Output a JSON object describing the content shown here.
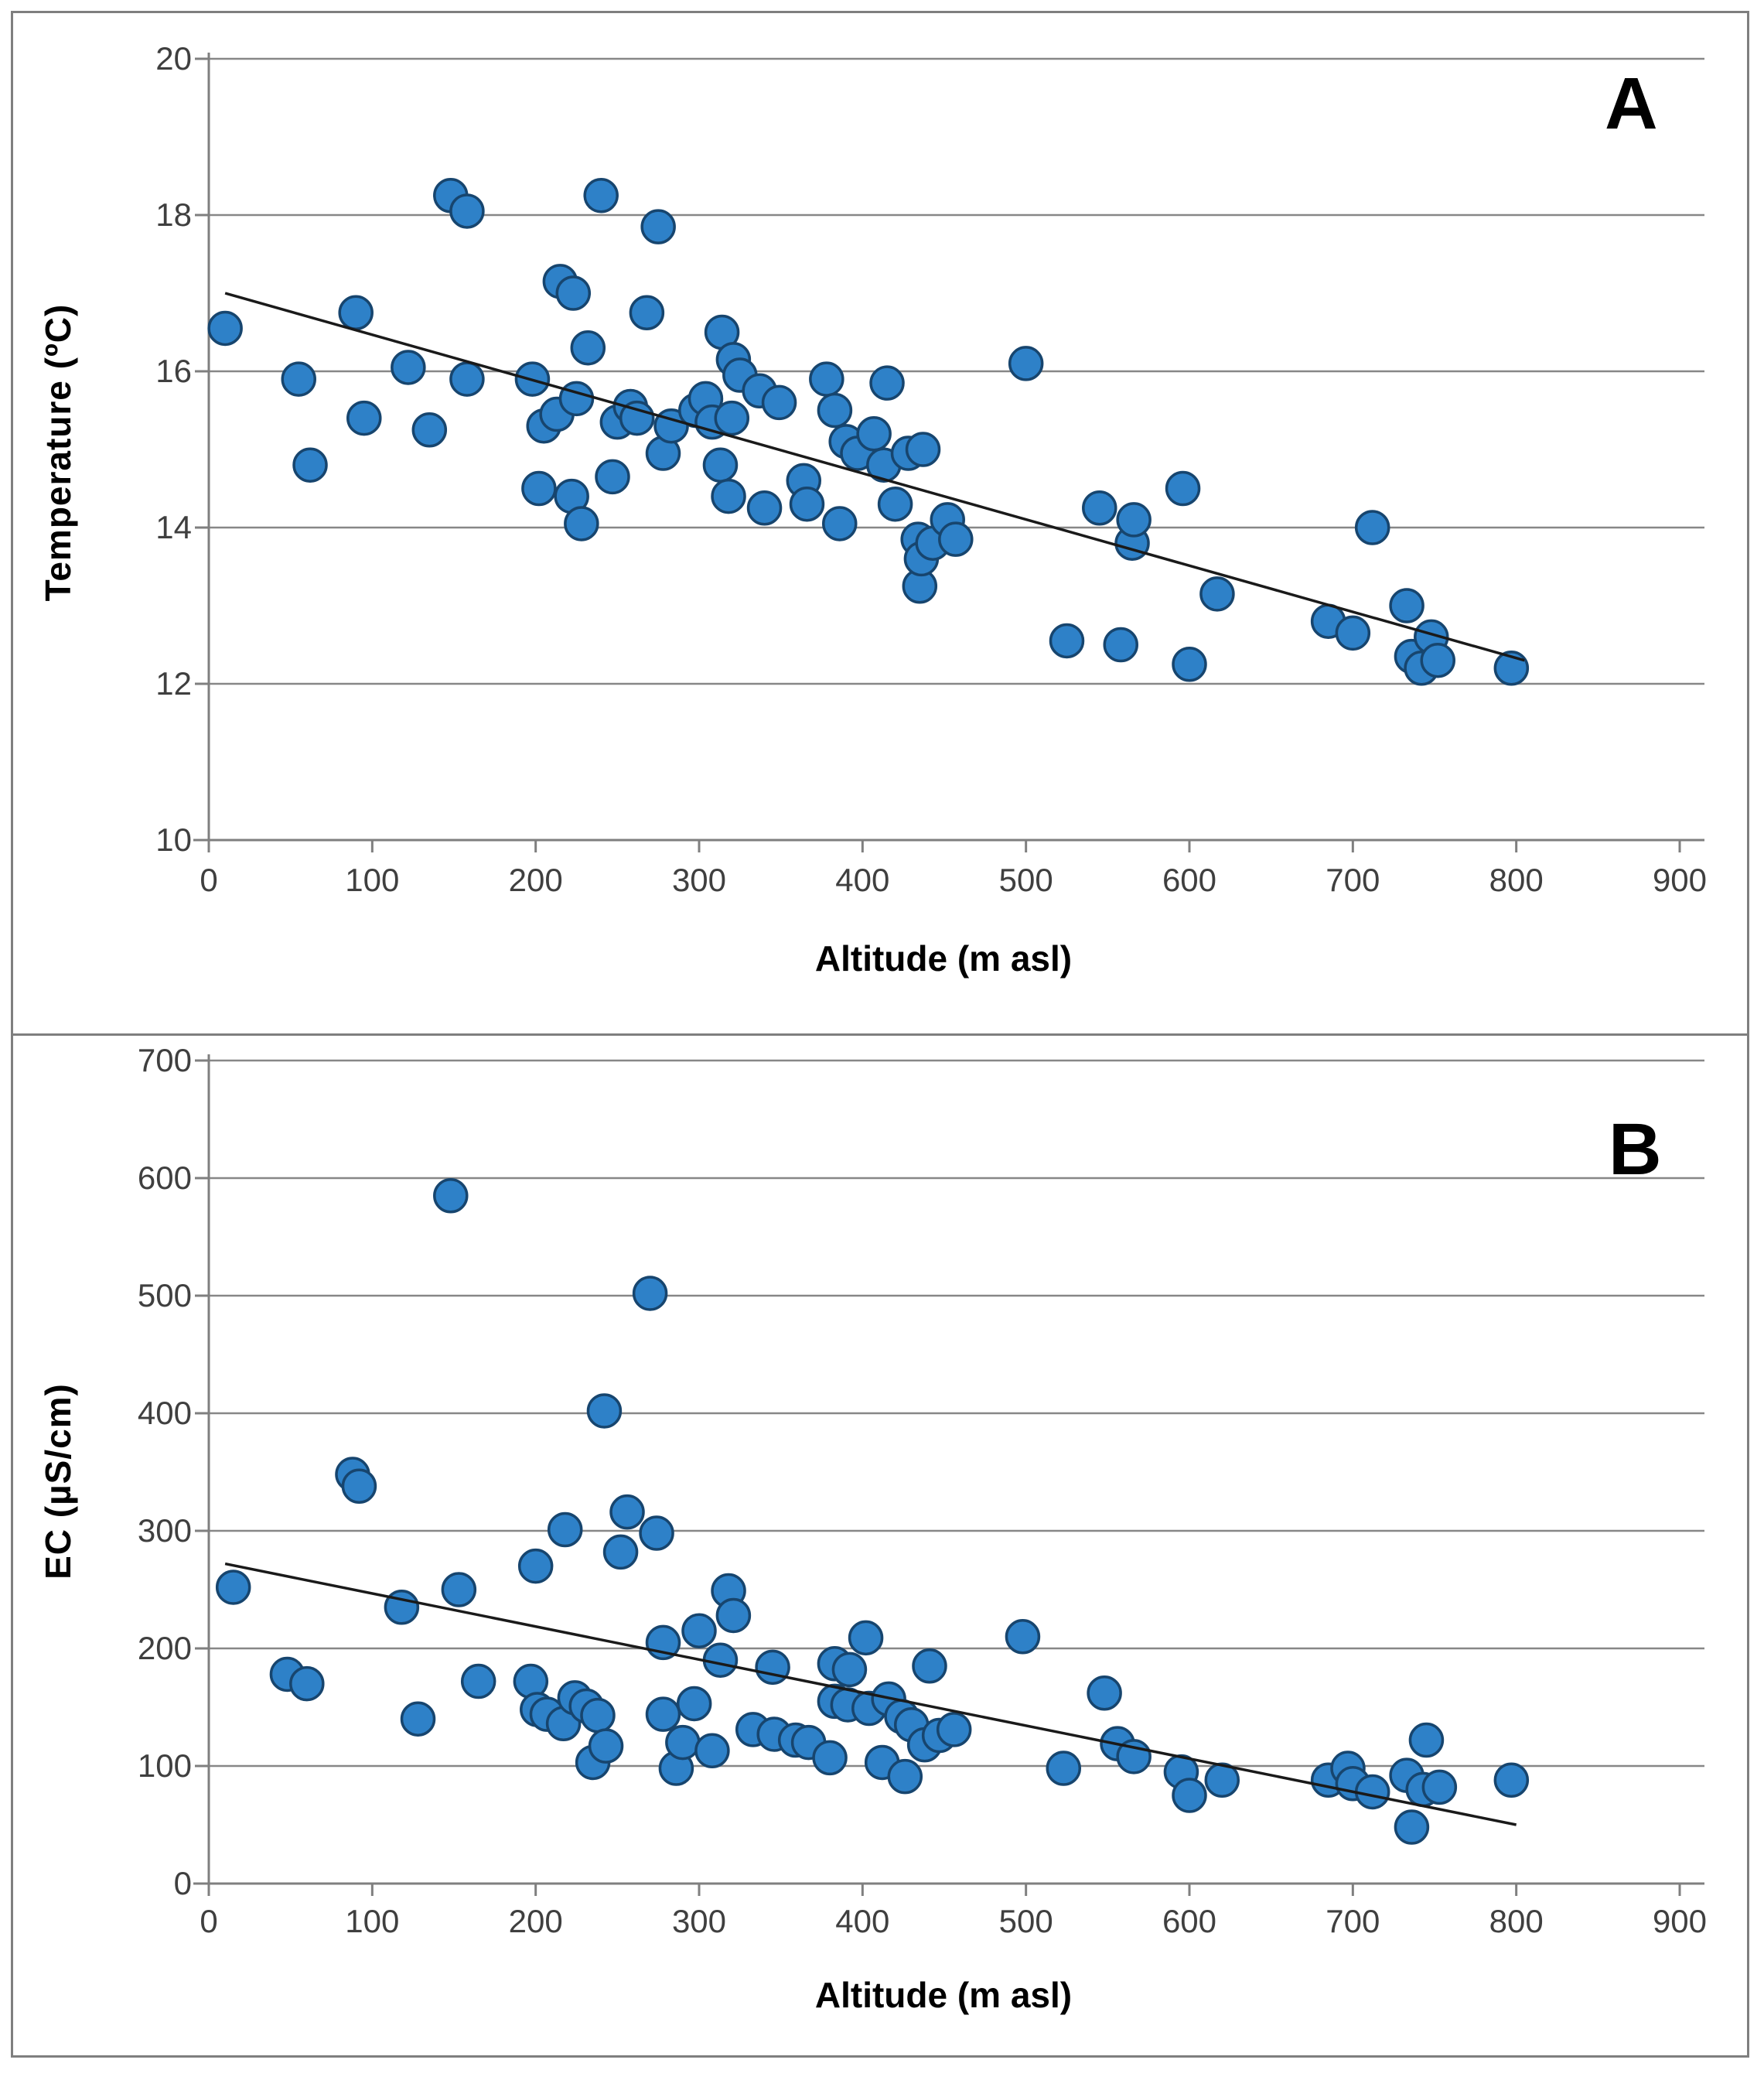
{
  "figure": {
    "border_color": "#7f7f7f",
    "background": "#ffffff",
    "marker_fill": "#2e81c8",
    "marker_stroke": "#17456e",
    "grid_color": "#878787",
    "axis_color": "#7f7f7f",
    "trend_color": "#1a1a1a",
    "tick_label_color": "#3f3f3f"
  },
  "chart_data": [
    {
      "type": "scatter",
      "panel_label": "A",
      "xlabel": "Altitude  (m asl)",
      "ylabel": "Temperature (ºC)",
      "xlim": [
        0,
        900
      ],
      "ylim": [
        10,
        20
      ],
      "x_ticks": [
        0,
        100,
        200,
        300,
        400,
        500,
        600,
        700,
        800,
        900
      ],
      "y_ticks": [
        20,
        18,
        16,
        14,
        12,
        10
      ],
      "grid": "horizontal",
      "legend": "none",
      "trendline": {
        "x1": 10,
        "y1": 17.0,
        "x2": 805,
        "y2": 12.3
      },
      "points": [
        [
          10,
          16.55
        ],
        [
          55,
          15.9
        ],
        [
          62,
          14.8
        ],
        [
          90,
          16.75
        ],
        [
          95,
          15.4
        ],
        [
          122,
          16.05
        ],
        [
          135,
          15.25
        ],
        [
          148,
          18.25
        ],
        [
          158,
          18.05
        ],
        [
          158,
          15.9
        ],
        [
          198,
          15.9
        ],
        [
          202,
          14.5
        ],
        [
          205,
          15.3
        ],
        [
          213,
          15.45
        ],
        [
          215,
          17.15
        ],
        [
          222,
          14.4
        ],
        [
          223,
          17.0
        ],
        [
          225,
          15.65
        ],
        [
          228,
          14.05
        ],
        [
          232,
          16.3
        ],
        [
          240,
          18.25
        ],
        [
          247,
          14.65
        ],
        [
          250,
          15.35
        ],
        [
          258,
          15.55
        ],
        [
          262,
          15.4
        ],
        [
          268,
          16.75
        ],
        [
          275,
          17.85
        ],
        [
          278,
          14.95
        ],
        [
          283,
          15.3
        ],
        [
          298,
          15.5
        ],
        [
          304,
          15.65
        ],
        [
          308,
          15.35
        ],
        [
          313,
          14.8
        ],
        [
          314,
          16.5
        ],
        [
          318,
          14.4
        ],
        [
          320,
          15.4
        ],
        [
          321,
          16.15
        ],
        [
          325,
          15.95
        ],
        [
          337,
          15.75
        ],
        [
          340,
          14.25
        ],
        [
          349,
          15.6
        ],
        [
          364,
          14.6
        ],
        [
          366,
          14.3
        ],
        [
          378,
          15.9
        ],
        [
          383,
          15.5
        ],
        [
          386,
          14.05
        ],
        [
          390,
          15.1
        ],
        [
          397,
          14.95
        ],
        [
          407,
          15.2
        ],
        [
          413,
          14.8
        ],
        [
          415,
          15.85
        ],
        [
          420,
          14.3
        ],
        [
          428,
          14.95
        ],
        [
          437,
          15.0
        ],
        [
          434,
          13.85
        ],
        [
          435,
          13.25
        ],
        [
          436,
          13.6
        ],
        [
          443,
          13.8
        ],
        [
          452,
          14.1
        ],
        [
          457,
          13.85
        ],
        [
          500,
          16.1
        ],
        [
          525,
          12.55
        ],
        [
          545,
          14.25
        ],
        [
          558,
          12.5
        ],
        [
          565,
          13.8
        ],
        [
          566,
          14.1
        ],
        [
          596,
          14.5
        ],
        [
          600,
          12.25
        ],
        [
          617,
          13.15
        ],
        [
          685,
          12.8
        ],
        [
          700,
          12.65
        ],
        [
          712,
          14.0
        ],
        [
          733,
          13.0
        ],
        [
          736,
          12.35
        ],
        [
          742,
          12.2
        ],
        [
          748,
          12.6
        ],
        [
          752,
          12.3
        ],
        [
          797,
          12.2
        ]
      ]
    },
    {
      "type": "scatter",
      "panel_label": "B",
      "xlabel": "Altitude  (m asl)",
      "ylabel": "EC (µS/cm)",
      "xlim": [
        0,
        900
      ],
      "ylim": [
        0,
        700
      ],
      "x_ticks": [
        0,
        100,
        200,
        300,
        400,
        500,
        600,
        700,
        800,
        900
      ],
      "y_ticks": [
        700,
        600,
        500,
        400,
        300,
        200,
        100,
        0
      ],
      "grid": "horizontal",
      "legend": "none",
      "trendline": {
        "x1": 10,
        "y1": 272,
        "x2": 800,
        "y2": 50
      },
      "points": [
        [
          15,
          252
        ],
        [
          48,
          178
        ],
        [
          60,
          170
        ],
        [
          88,
          348
        ],
        [
          92,
          338
        ],
        [
          118,
          235
        ],
        [
          128,
          140
        ],
        [
          148,
          585
        ],
        [
          153,
          250
        ],
        [
          165,
          172
        ],
        [
          197,
          172
        ],
        [
          200,
          270
        ],
        [
          201,
          148
        ],
        [
          207,
          144
        ],
        [
          217,
          136
        ],
        [
          218,
          301
        ],
        [
          224,
          158
        ],
        [
          231,
          151
        ],
        [
          235,
          103
        ],
        [
          238,
          143
        ],
        [
          243,
          117
        ],
        [
          242,
          402
        ],
        [
          252,
          282
        ],
        [
          256,
          316
        ],
        [
          270,
          502
        ],
        [
          274,
          298
        ],
        [
          278,
          205
        ],
        [
          278,
          144
        ],
        [
          286,
          98
        ],
        [
          290,
          120
        ],
        [
          297,
          153
        ],
        [
          300,
          215
        ],
        [
          308,
          113
        ],
        [
          313,
          190
        ],
        [
          318,
          249
        ],
        [
          321,
          228
        ],
        [
          333,
          131
        ],
        [
          345,
          184
        ],
        [
          346,
          127
        ],
        [
          359,
          122
        ],
        [
          367,
          120
        ],
        [
          380,
          107
        ],
        [
          383,
          155
        ],
        [
          383,
          187
        ],
        [
          391,
          152
        ],
        [
          392,
          182
        ],
        [
          402,
          209
        ],
        [
          404,
          149
        ],
        [
          412,
          103
        ],
        [
          416,
          157
        ],
        [
          424,
          142
        ],
        [
          426,
          91
        ],
        [
          430,
          135
        ],
        [
          438,
          118
        ],
        [
          441,
          185
        ],
        [
          447,
          126
        ],
        [
          456,
          131
        ],
        [
          498,
          210
        ],
        [
          523,
          98
        ],
        [
          548,
          162
        ],
        [
          556,
          119
        ],
        [
          566,
          108
        ],
        [
          595,
          95
        ],
        [
          600,
          75
        ],
        [
          620,
          88
        ],
        [
          685,
          88
        ],
        [
          697,
          98
        ],
        [
          700,
          85
        ],
        [
          712,
          78
        ],
        [
          733,
          92
        ],
        [
          736,
          48
        ],
        [
          743,
          80
        ],
        [
          745,
          122
        ],
        [
          753,
          82
        ],
        [
          797,
          88
        ]
      ]
    }
  ]
}
